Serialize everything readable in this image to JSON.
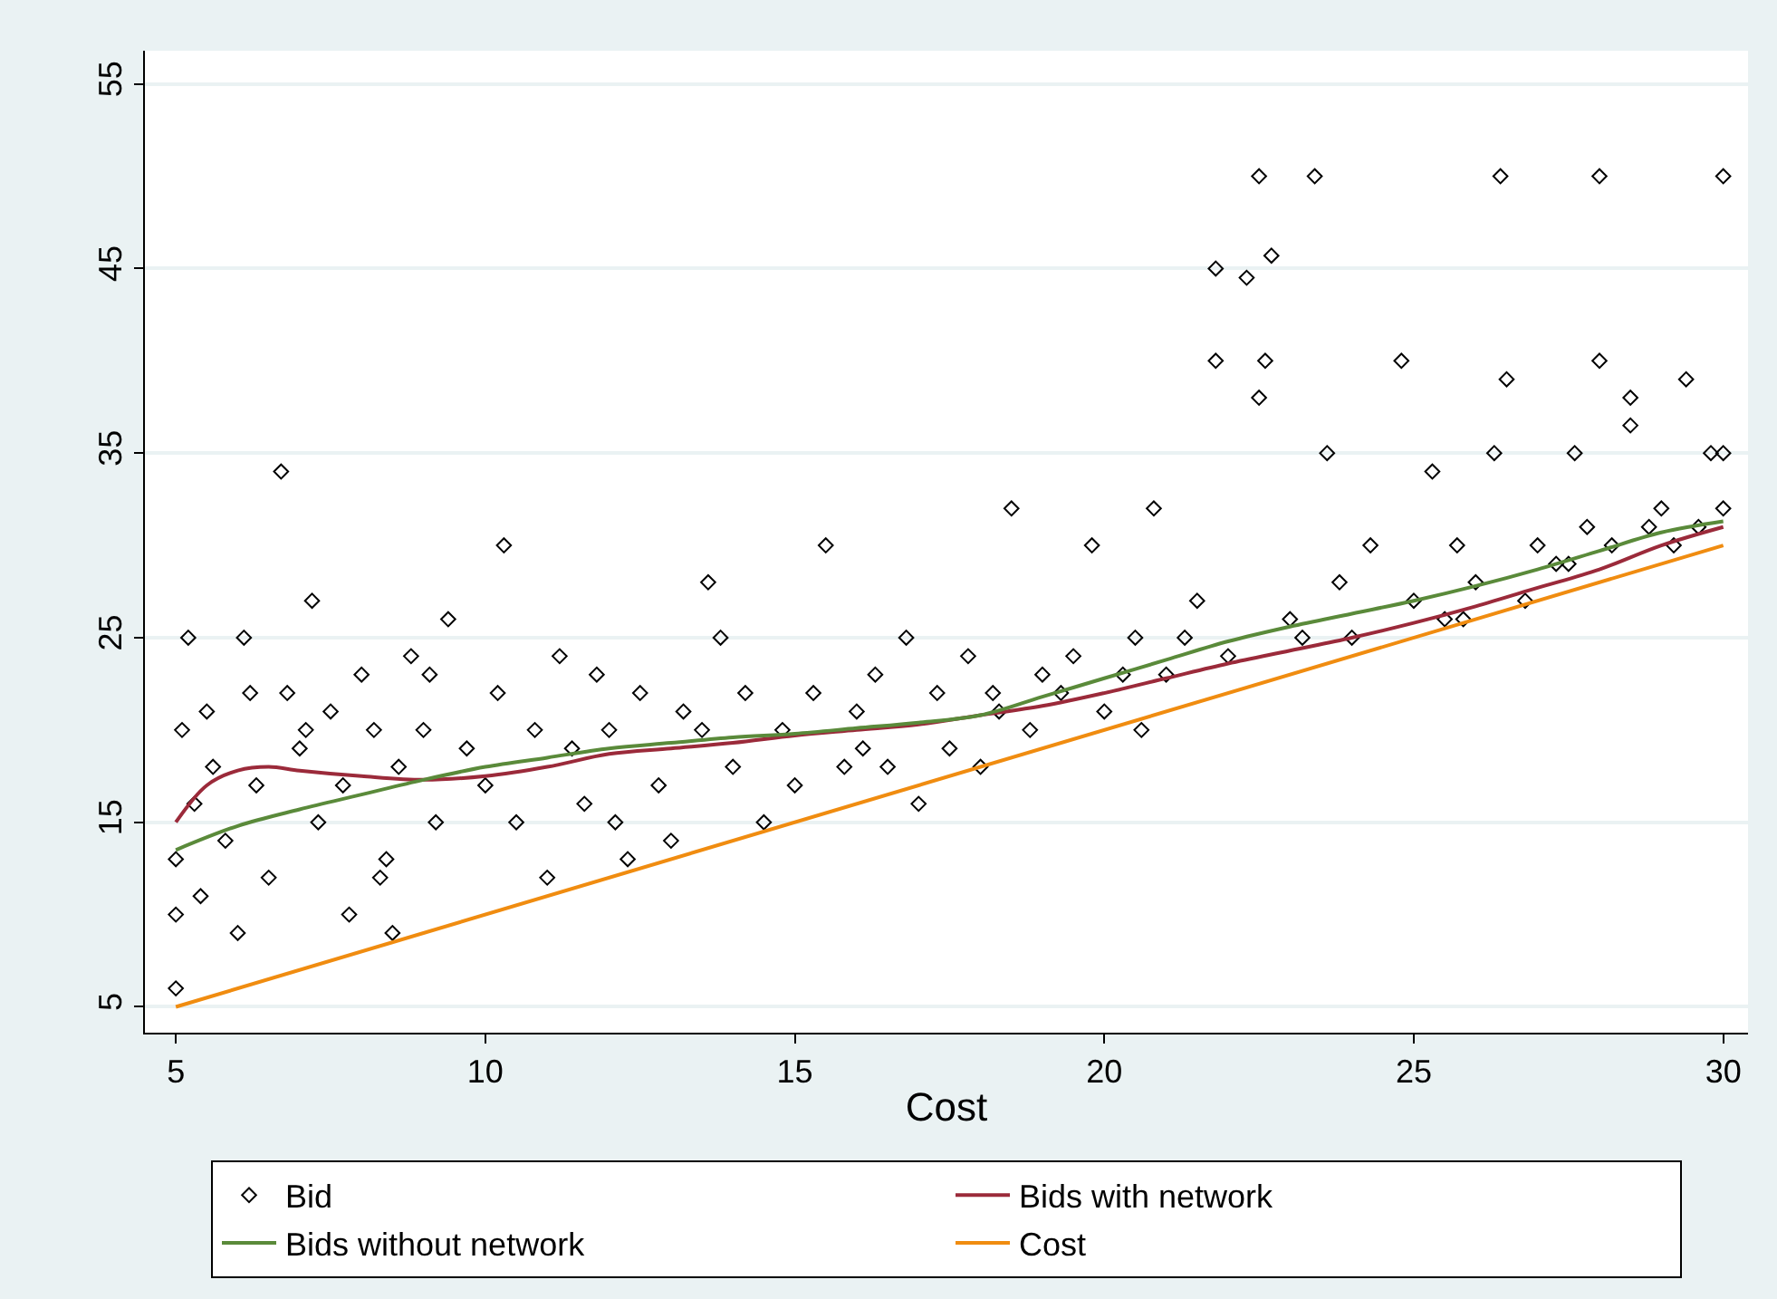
{
  "chart_data": {
    "type": "scatter",
    "xlabel": "Cost",
    "xlim": [
      4.5,
      30.4
    ],
    "ylim": [
      3.6,
      56.8
    ],
    "xticks": [
      5,
      10,
      15,
      20,
      25,
      30
    ],
    "yticks": [
      5,
      15,
      25,
      35,
      45,
      55
    ],
    "grid": "y",
    "legend": "bottom",
    "series": [
      {
        "name": "Bid",
        "marker": "diamond",
        "color": "#000000",
        "x": [
          5,
          5,
          5,
          5.1,
          5.2,
          5.3,
          5.5,
          5.6,
          5.8,
          6,
          6.1,
          6.3,
          6.5,
          6.7,
          6.8,
          7,
          7.2,
          7.3,
          7.5,
          7.7,
          7.8,
          8,
          8.2,
          8.4,
          8.5,
          8.6,
          8.8,
          9,
          9.2,
          9.4,
          9.7,
          10,
          10.2,
          10.3,
          10.5,
          10.8,
          11,
          11.2,
          11.4,
          11.6,
          11.8,
          12,
          12.3,
          12.5,
          12.8,
          13,
          13.2,
          13.5,
          13.8,
          14,
          14.2,
          14.5,
          14.8,
          15,
          15.3,
          15.5,
          15.8,
          16,
          16.3,
          16.5,
          16.8,
          17,
          17.3,
          17.5,
          17.8,
          18,
          18.3,
          18.5,
          18.8,
          19,
          19.3,
          19.5,
          19.8,
          20,
          20.3,
          20.5,
          20.8,
          21,
          21.3,
          21.5,
          21.8,
          21.8,
          22,
          22.3,
          22.5,
          22.5,
          22.6,
          22.7,
          23,
          23.4,
          23.6,
          23.8,
          24,
          24.3,
          24.8,
          25,
          25.3,
          25.5,
          25.7,
          26,
          26.3,
          26.4,
          26.5,
          26.8,
          27,
          27.3,
          27.6,
          27.8,
          28,
          28,
          28.2,
          28.5,
          28.5,
          28.8,
          29,
          29.2,
          29.4,
          29.6,
          29.8,
          30,
          30,
          30,
          5.4,
          6.2,
          7.1,
          8.3,
          9.1,
          12.1,
          13.6,
          16.1,
          18.2,
          20.6,
          23.2,
          25.8,
          27.5
        ],
        "values": [
          6,
          10,
          13,
          20,
          25,
          16,
          21,
          18,
          14,
          9,
          25,
          17,
          12,
          34,
          22,
          19,
          27,
          15,
          21,
          17,
          10,
          23,
          20,
          13,
          9,
          18,
          24,
          20,
          15,
          26,
          19,
          17,
          22,
          30,
          15,
          20,
          12,
          24,
          19,
          16,
          23,
          20,
          13,
          22,
          17,
          14,
          21,
          20,
          25,
          18,
          22,
          15,
          20,
          17,
          22,
          30,
          18,
          21,
          23,
          18,
          25,
          16,
          22,
          19,
          24,
          18,
          21,
          32,
          20,
          23,
          22,
          24,
          30,
          21,
          23,
          25,
          32,
          23,
          25,
          27,
          45,
          40,
          24,
          44.5,
          50,
          38,
          40,
          45.7,
          26,
          50,
          35,
          28,
          25,
          30,
          40,
          27,
          34,
          26,
          30,
          28,
          35,
          50,
          39,
          27,
          30,
          29,
          35,
          31,
          50,
          40,
          30,
          38,
          36.5,
          31,
          32,
          30,
          39,
          31,
          35,
          50,
          35,
          32,
          11,
          22,
          20,
          12,
          23,
          15,
          28,
          19,
          22,
          20,
          25,
          26,
          29
        ]
      },
      {
        "name": "Bids with network",
        "type": "line",
        "color": "#9b2a3a",
        "x": [
          5,
          5.5,
          6,
          6.5,
          7,
          8,
          9,
          10,
          11,
          12,
          13,
          14,
          15,
          16,
          17,
          18,
          19,
          20,
          21,
          22,
          23,
          24,
          25,
          26,
          27,
          28,
          29,
          30
        ],
        "values": [
          15,
          17,
          17.8,
          18,
          17.8,
          17.5,
          17.3,
          17.5,
          18,
          18.7,
          19,
          19.3,
          19.7,
          20,
          20.3,
          20.8,
          21.3,
          22,
          22.8,
          23.6,
          24.3,
          25,
          25.8,
          26.7,
          27.7,
          28.7,
          30,
          31
        ]
      },
      {
        "name": "Bids without network",
        "type": "line",
        "color": "#5a8a3a",
        "x": [
          5,
          6,
          7,
          8,
          9,
          10,
          11,
          12,
          13,
          14,
          15,
          16,
          17,
          18,
          19,
          20,
          21,
          22,
          23,
          24,
          25,
          26,
          27,
          28,
          29,
          30
        ],
        "values": [
          13.5,
          14.8,
          15.7,
          16.5,
          17.3,
          18,
          18.5,
          19,
          19.3,
          19.6,
          19.8,
          20.1,
          20.4,
          20.8,
          21.8,
          22.8,
          23.8,
          24.8,
          25.6,
          26.3,
          27,
          27.8,
          28.7,
          29.7,
          30.7,
          31.3
        ]
      },
      {
        "name": "Cost",
        "type": "line",
        "color": "#f08c10",
        "x": [
          5,
          30
        ],
        "values": [
          5,
          30
        ]
      }
    ]
  }
}
